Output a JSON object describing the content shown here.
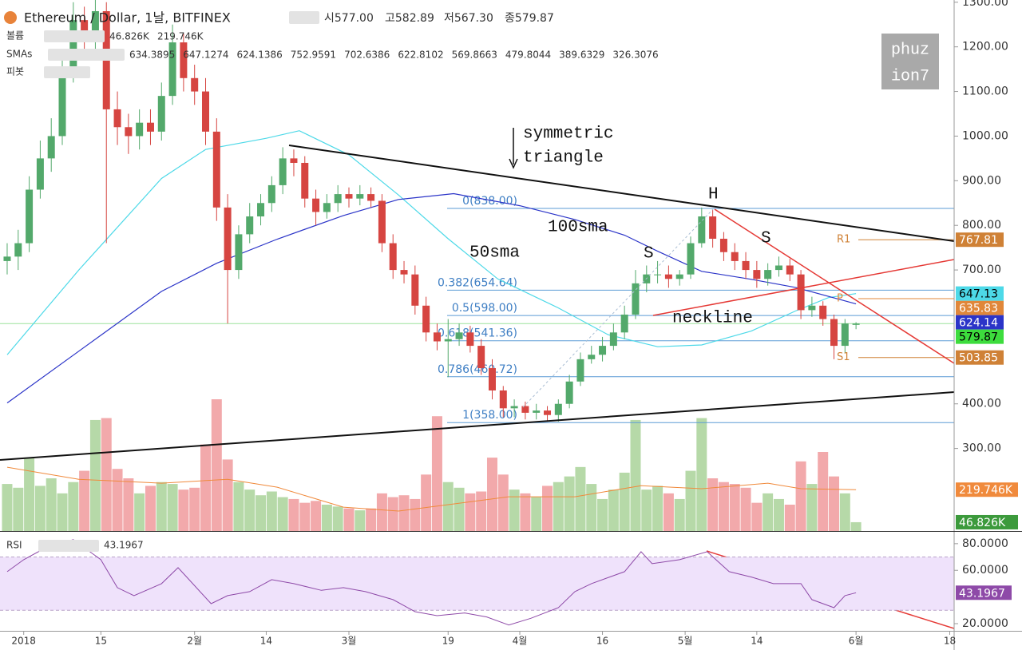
{
  "chart_data": {
    "type": "candlestick",
    "title": "Ethereum / Dollar, 1날, BITFINEX",
    "ohlc_text": [
      "시577.00",
      "고582.89",
      "저567.30",
      "종579.87"
    ],
    "legend": {
      "volume": "볼륨",
      "smas": "SMAs",
      "pivot": "피봇",
      "rsi": "RSI"
    },
    "up_color": "#53a96b",
    "down_color": "#d64541",
    "volume_up_color": "#b6d9a8",
    "volume_down_color": "#f2a9ab",
    "xlim": [
      -4.3,
      168.8
    ],
    "xticks": [
      {
        "value": 0,
        "label": "2018"
      },
      {
        "value": 14,
        "label": "15"
      },
      {
        "value": 31,
        "label": "2월"
      },
      {
        "value": 44,
        "label": "14"
      },
      {
        "value": 59,
        "label": "3월"
      },
      {
        "value": 77,
        "label": "19"
      },
      {
        "value": 90,
        "label": "4월"
      },
      {
        "value": 105,
        "label": "16"
      },
      {
        "value": 120,
        "label": "5월"
      },
      {
        "value": 133,
        "label": "14"
      },
      {
        "value": 151,
        "label": "6월"
      },
      {
        "value": 168,
        "label": "18"
      }
    ],
    "ylim": [
      115,
      1305
    ],
    "yticks": [
      {
        "value": 1300,
        "label": "1300.00"
      },
      {
        "value": 1200,
        "label": "1200.00"
      },
      {
        "value": 1100,
        "label": "1100.00"
      },
      {
        "value": 1000,
        "label": "1000.00"
      },
      {
        "value": 900,
        "label": "900.00"
      },
      {
        "value": 800,
        "label": "800.00"
      },
      {
        "value": 700,
        "label": "700.00"
      },
      {
        "value": 400,
        "label": "400.00"
      },
      {
        "value": 300,
        "label": "300.00"
      }
    ],
    "x": [
      -3,
      -1,
      1,
      3,
      5,
      7,
      9,
      11,
      13,
      15,
      17,
      19,
      21,
      23,
      25,
      27,
      29,
      31,
      33,
      35,
      37,
      39,
      41,
      43,
      45,
      47,
      49,
      51,
      53,
      55,
      57,
      59,
      61,
      63,
      65,
      67,
      69,
      71,
      73,
      75,
      77,
      79,
      81,
      83,
      85,
      87,
      89,
      91,
      93,
      95,
      97,
      99,
      101,
      103,
      105,
      107,
      109,
      111,
      113,
      115,
      117,
      119,
      121,
      123,
      125,
      127,
      129,
      131,
      133,
      135,
      137,
      139,
      141,
      143,
      145,
      147,
      149,
      151
    ],
    "open": [
      720,
      730,
      760,
      880,
      950,
      1000,
      1150,
      1260,
      1220,
      1280,
      1060,
      1020,
      1000,
      1030,
      1010,
      1090,
      1210,
      1130,
      1100,
      1010,
      840,
      700,
      780,
      820,
      850,
      890,
      950,
      940,
      860,
      830,
      850,
      870,
      860,
      870,
      855,
      760,
      700,
      690,
      620,
      560,
      540,
      545,
      560,
      530,
      480,
      430,
      390,
      395,
      380,
      385,
      375,
      400,
      450,
      500,
      510,
      530,
      560,
      600,
      670,
      690,
      690,
      680,
      690,
      760,
      820,
      770,
      740,
      720,
      700,
      680,
      700,
      710,
      690,
      610,
      620,
      590,
      530,
      577
    ],
    "high": [
      760,
      790,
      910,
      990,
      1040,
      1190,
      1300,
      1290,
      1310,
      1300,
      1100,
      1050,
      1060,
      1060,
      1120,
      1250,
      1230,
      1160,
      1130,
      1040,
      870,
      800,
      850,
      870,
      910,
      975,
      970,
      955,
      880,
      870,
      890,
      885,
      890,
      885,
      870,
      780,
      720,
      710,
      640,
      580,
      590,
      580,
      575,
      545,
      500,
      440,
      410,
      405,
      400,
      395,
      410,
      465,
      515,
      530,
      550,
      580,
      620,
      700,
      710,
      720,
      710,
      700,
      775,
      840,
      835,
      785,
      760,
      740,
      720,
      715,
      730,
      725,
      700,
      640,
      630,
      600,
      590,
      582.89
    ],
    "low": [
      690,
      700,
      740,
      860,
      920,
      980,
      1120,
      1180,
      1190,
      760,
      980,
      960,
      970,
      980,
      990,
      1070,
      1100,
      1070,
      980,
      810,
      580,
      680,
      760,
      800,
      830,
      870,
      910,
      840,
      800,
      815,
      830,
      840,
      845,
      840,
      740,
      680,
      670,
      600,
      540,
      520,
      460,
      530,
      515,
      465,
      410,
      370,
      370,
      365,
      365,
      360,
      360,
      390,
      440,
      490,
      495,
      520,
      545,
      590,
      650,
      670,
      660,
      665,
      680,
      750,
      750,
      720,
      700,
      680,
      660,
      665,
      685,
      675,
      590,
      595,
      575,
      500,
      515,
      567.3
    ],
    "close": [
      730,
      760,
      880,
      950,
      1000,
      1150,
      1260,
      1220,
      1280,
      1060,
      1020,
      1000,
      1030,
      1010,
      1090,
      1210,
      1130,
      1100,
      1010,
      840,
      700,
      780,
      820,
      850,
      890,
      950,
      940,
      860,
      830,
      850,
      870,
      860,
      870,
      855,
      760,
      700,
      690,
      620,
      560,
      540,
      545,
      560,
      530,
      480,
      430,
      390,
      395,
      380,
      385,
      375,
      400,
      450,
      500,
      510,
      530,
      560,
      600,
      670,
      690,
      690,
      680,
      690,
      760,
      820,
      770,
      740,
      720,
      700,
      680,
      700,
      710,
      690,
      610,
      620,
      590,
      530,
      580,
      579.87
    ],
    "volume": [
      250000,
      230000,
      390000,
      240000,
      280000,
      200000,
      260000,
      320000,
      590000,
      600000,
      330000,
      280000,
      200000,
      240000,
      260000,
      250000,
      220000,
      230000,
      460000,
      700000,
      380000,
      260000,
      220000,
      190000,
      210000,
      180000,
      170000,
      150000,
      160000,
      140000,
      130000,
      120000,
      110000,
      120000,
      200000,
      180000,
      190000,
      170000,
      300000,
      610000,
      260000,
      230000,
      200000,
      210000,
      390000,
      300000,
      220000,
      200000,
      180000,
      240000,
      260000,
      290000,
      340000,
      250000,
      170000,
      220000,
      310000,
      590000,
      220000,
      240000,
      200000,
      170000,
      320000,
      600000,
      280000,
      260000,
      250000,
      230000,
      150000,
      200000,
      170000,
      140000,
      370000,
      250000,
      420000,
      290000,
      200000,
      46826
    ],
    "volume_ylim": [
      0,
      700000
    ],
    "volume_ma": {
      "color": "#f08a3c",
      "x": [
        -3,
        10,
        25,
        37,
        46,
        58,
        68,
        77,
        88,
        100,
        112,
        123,
        135,
        141,
        151
      ],
      "values": [
        339000,
        275000,
        254000,
        275000,
        233000,
        127000,
        106000,
        140000,
        182000,
        182000,
        241000,
        225000,
        254000,
        225000,
        219746
      ]
    },
    "volume_tags": [
      {
        "value": 46826,
        "label": "46.826K",
        "color": "#3c9a3c",
        "legend_color": "#3c9a3c"
      },
      {
        "value": 219746,
        "label": "219.746K",
        "color": "#f08a3c",
        "legend_color": "#e07b2b"
      }
    ],
    "sma_lines": [
      {
        "color": "#4dd9e8",
        "x": [
          -3,
          10,
          25,
          33,
          44,
          50,
          59,
          68,
          77,
          86,
          97,
          106,
          115,
          123,
          132,
          140,
          146,
          151
        ],
        "values": [
          510,
          700,
          905,
          970,
          995,
          1012,
          958,
          868,
          770,
          680,
          615,
          555,
          528,
          532,
          563,
          608,
          638,
          647
        ]
      },
      {
        "color": "#2b34c8",
        "x": [
          -3,
          10,
          25,
          35,
          46,
          58,
          68,
          78,
          90,
          100,
          109,
          115,
          123,
          132,
          140,
          151
        ],
        "values": [
          402,
          518,
          652,
          715,
          769,
          822,
          858,
          871,
          844,
          813,
          778,
          742,
          697,
          679,
          661,
          624
        ]
      }
    ],
    "sma_legend": [
      {
        "value": 634.3895,
        "color": "#e07b2b"
      },
      {
        "value": 647.1274,
        "color": "#35c2d2"
      },
      {
        "value": 624.1386,
        "color": "#2b34c8"
      },
      {
        "value": 752.9591,
        "color": "#e07b2b"
      },
      {
        "value": 702.6386,
        "color": "#9b30c8"
      },
      {
        "value": 622.8102,
        "color": "#d32f2f"
      },
      {
        "value": 569.8663,
        "color": "#2e9b2e"
      },
      {
        "value": 479.8044,
        "color": "#1b6e1b"
      },
      {
        "value": 389.6329,
        "color": "#2e9b2e"
      },
      {
        "value": 326.3076,
        "color": "#1b6e1b"
      }
    ],
    "fib_levels": [
      {
        "value": 838,
        "label": "0(838.00)"
      },
      {
        "value": 654.64,
        "label": "0.382(654.64)"
      },
      {
        "value": 598,
        "label": "0.5(598.00)"
      },
      {
        "value": 541.36,
        "label": "0.618(541.36)"
      },
      {
        "value": 460.72,
        "label": "0.786(460.72)"
      },
      {
        "value": 358,
        "label": "1(358.00)"
      }
    ],
    "fib_color": "#5b9bd5",
    "pivots": [
      {
        "name": "R1",
        "value": 767.81,
        "color": "#cf8136"
      },
      {
        "name": "P",
        "value": 635.83,
        "color": "#e0873a"
      },
      {
        "name": "S1",
        "value": 503.85,
        "color": "#cf8136"
      }
    ],
    "price_tags": [
      {
        "value": 647.13,
        "color": "#4dd9e8",
        "text_color": "#000000"
      },
      {
        "value": 624.14,
        "color": "#2b34c8",
        "text_color": "#ffffff"
      },
      {
        "value": 579.87,
        "color": "#3ddc3d",
        "text_color": "#000000",
        "line": true
      }
    ],
    "rsi": {
      "color": "#8e4aa8",
      "band_color": "#efe2fb",
      "band": [
        30,
        70
      ],
      "ylim": [
        14.6,
        88.9
      ],
      "yticks": [
        {
          "value": 80,
          "label": "80.0000"
        },
        {
          "value": 60,
          "label": "60.0000"
        },
        {
          "value": 20,
          "label": "20.0000"
        }
      ],
      "x": [
        -3,
        0,
        4,
        9,
        12,
        14,
        17,
        20,
        25,
        28,
        30,
        34,
        37,
        41,
        45,
        49,
        54,
        58,
        62,
        67,
        71,
        75,
        80,
        84,
        88,
        92,
        97,
        100,
        103,
        109,
        112,
        114,
        119,
        124,
        128,
        132,
        136,
        141,
        143,
        147,
        149,
        151
      ],
      "values": [
        59,
        68,
        77,
        83,
        74,
        68,
        47,
        41,
        50,
        62,
        53,
        35,
        41,
        44,
        53,
        50,
        45,
        47,
        44,
        38,
        29,
        26,
        28,
        25,
        19,
        24,
        32,
        44,
        50,
        59,
        74,
        65,
        68,
        74,
        59,
        55,
        50,
        50,
        38,
        32,
        41,
        43.1967
      ],
      "last": 43.1967
    },
    "annotations": [
      "symmetric",
      "triangle",
      "50sma",
      "100sma",
      "S",
      "H",
      "S",
      "neckline"
    ],
    "watermark": [
      "phuz",
      "ion7"
    ]
  }
}
